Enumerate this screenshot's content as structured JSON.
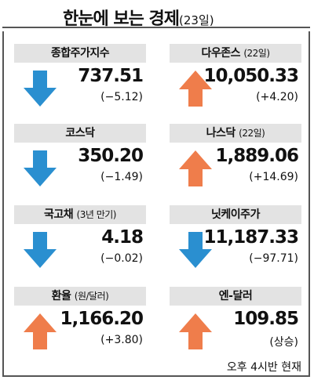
{
  "header": {
    "title": "한눈에 보는 경제",
    "date": "(23일)"
  },
  "colors": {
    "down": "#2a8fd0",
    "up": "#ef7d4b"
  },
  "cards": [
    {
      "name": "종합주가지수",
      "sub": "",
      "value": "737.51",
      "change": "(−5.12)",
      "direction": "down",
      "icon": "down-arrow-icon"
    },
    {
      "name": "다우존스",
      "sub": "(22일)",
      "value": "10,050.33",
      "change": "(+4.20)",
      "direction": "up",
      "icon": "up-arrow-icon"
    },
    {
      "name": "코스닥",
      "sub": "",
      "value": "350.20",
      "change": "(−1.49)",
      "direction": "down",
      "icon": "down-arrow-icon"
    },
    {
      "name": "나스닥",
      "sub": "(22일)",
      "value": "1,889.06",
      "change": "(+14.69)",
      "direction": "up",
      "icon": "up-arrow-icon"
    },
    {
      "name": "국고채",
      "sub": "(3년 만기)",
      "value": "4.18",
      "change": "(−0.02)",
      "direction": "down",
      "icon": "down-arrow-icon"
    },
    {
      "name": "닛케이주가",
      "sub": "",
      "value": "11,187.33",
      "change": "(−97.71)",
      "direction": "down",
      "icon": "down-arrow-icon"
    },
    {
      "name": "환율",
      "sub": "(원/달러)",
      "value": "1,166.20",
      "change": "(+3.80)",
      "direction": "up",
      "icon": "up-arrow-icon"
    },
    {
      "name": "엔-달러",
      "sub": "",
      "value": "109.85",
      "change": "(상승)",
      "direction": "up",
      "icon": "up-arrow-icon"
    }
  ],
  "footnote": "오후 4시반  현재"
}
